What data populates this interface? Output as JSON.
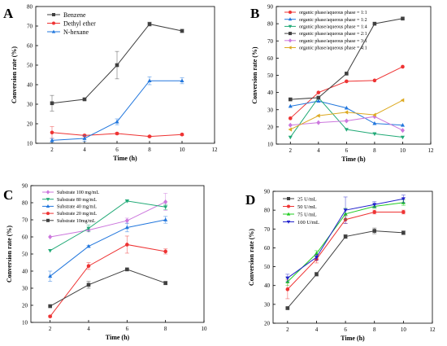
{
  "chart_data": [
    {
      "panel_label": "A",
      "type": "line",
      "xlabel": "Time (h)",
      "ylabel": "Conversion rate (%)",
      "xlim": [
        1,
        12
      ],
      "ylim": [
        10,
        80
      ],
      "xticks": [
        2,
        4,
        6,
        8,
        10,
        12
      ],
      "yticks": [
        10,
        20,
        30,
        40,
        50,
        60,
        70,
        80
      ],
      "legend_position": "top-left",
      "x": [
        2,
        4,
        6,
        8,
        10
      ],
      "series": [
        {
          "name": "Benzene",
          "color": "#404040",
          "marker": "square",
          "values": [
            30.5,
            32.5,
            50,
            71,
            67.5
          ],
          "errors": [
            4,
            0.5,
            7,
            1,
            0.8
          ]
        },
        {
          "name": "Dethyl ether",
          "color": "#ee3333",
          "marker": "circle",
          "values": [
            15.5,
            14,
            15,
            13.5,
            14.5
          ],
          "errors": [
            3,
            0.5,
            0.5,
            0.4,
            0.5
          ]
        },
        {
          "name": "N-hexane",
          "color": "#2277dd",
          "marker": "triangle",
          "values": [
            11.5,
            12.5,
            21,
            42,
            42
          ],
          "errors": [
            1,
            1.5,
            1.5,
            2,
            1.5
          ]
        }
      ]
    },
    {
      "panel_label": "B",
      "type": "line",
      "xlabel": "Time (h)",
      "ylabel": "Conversion rate (%)",
      "xlim": [
        1,
        12
      ],
      "ylim": [
        10,
        90
      ],
      "xticks": [
        2,
        4,
        6,
        8,
        10,
        12
      ],
      "yticks": [
        10,
        20,
        30,
        40,
        50,
        60,
        70,
        80,
        90
      ],
      "legend_position": "top-left",
      "x": [
        2,
        4,
        6,
        8,
        10
      ],
      "series": [
        {
          "name": "organic phase/aqueous phase = 1:1",
          "color": "#ee3333",
          "marker": "circle",
          "values": [
            25,
            40,
            46.5,
            47,
            55
          ],
          "errors": [
            0,
            0,
            0,
            0,
            0
          ]
        },
        {
          "name": "organic phase/aqueous phase = 1:2",
          "color": "#2277dd",
          "marker": "triangle",
          "values": [
            32,
            35,
            31,
            22,
            21
          ],
          "errors": [
            0,
            0,
            0,
            0,
            0
          ]
        },
        {
          "name": "organic phase/aqueous phase = 1:4",
          "color": "#22aa77",
          "marker": "triangle-down",
          "values": [
            14,
            37,
            18.5,
            16,
            14
          ],
          "errors": [
            0,
            0,
            0,
            0,
            0
          ]
        },
        {
          "name": "organic phase/aqueous phase = 2:1",
          "color": "#404040",
          "marker": "square",
          "values": [
            36,
            37,
            51,
            80,
            83
          ],
          "errors": [
            0,
            0,
            0,
            0,
            0
          ]
        },
        {
          "name": "organic phase/aqueous phase = 3:1",
          "color": "#cc77dd",
          "marker": "diamond",
          "values": [
            21,
            22.5,
            23.5,
            26,
            18
          ],
          "errors": [
            0,
            0,
            0,
            0,
            0
          ]
        },
        {
          "name": "organic phase/aqueous phase = 4:1",
          "color": "#ddaa22",
          "marker": "triangle-left",
          "values": [
            18.5,
            26.5,
            28.5,
            27,
            35.5
          ],
          "errors": [
            0,
            0,
            0,
            0,
            0
          ]
        }
      ]
    },
    {
      "panel_label": "C",
      "type": "line",
      "xlabel": "Time (h)",
      "ylabel": "Conversion rate (%)",
      "xlim": [
        1,
        10
      ],
      "ylim": [
        10,
        90
      ],
      "xticks": [
        2,
        4,
        6,
        8,
        10
      ],
      "yticks": [
        10,
        20,
        30,
        40,
        50,
        60,
        70,
        80,
        90
      ],
      "legend_position": "top-left",
      "x": [
        2,
        4,
        6,
        8
      ],
      "series": [
        {
          "name": "Substrate 100 mg/mL",
          "color": "#cc77dd",
          "marker": "diamond",
          "values": [
            60,
            64,
            69.5,
            80.5
          ],
          "errors": [
            0,
            0,
            1.5,
            5
          ]
        },
        {
          "name": "Substrate 80 mg/mL",
          "color": "#22aa77",
          "marker": "triangle-down",
          "values": [
            52,
            65,
            81,
            77.5
          ],
          "errors": [
            0,
            2,
            0.5,
            1.5
          ]
        },
        {
          "name": "Substrate 40 mg/mL",
          "color": "#2277dd",
          "marker": "triangle",
          "values": [
            37,
            54.5,
            65.5,
            70
          ],
          "errors": [
            3,
            0.5,
            2.5,
            2
          ]
        },
        {
          "name": "Substrate 20 mg/mL",
          "color": "#ee3333",
          "marker": "circle",
          "values": [
            13.5,
            43,
            55.5,
            51.5
          ],
          "errors": [
            0.5,
            2,
            5,
            1.5
          ]
        },
        {
          "name": "Substrate 10mg/mL",
          "color": "#404040",
          "marker": "square",
          "values": [
            19.5,
            32,
            41,
            33
          ],
          "errors": [
            0,
            2,
            0.5,
            1
          ]
        }
      ]
    },
    {
      "panel_label": "D",
      "type": "line",
      "xlabel": "Time (h)",
      "ylabel": "Conversion rate (%)",
      "xlim": [
        1,
        12
      ],
      "ylim": [
        20,
        90
      ],
      "xticks": [
        2,
        4,
        6,
        8,
        10,
        12
      ],
      "yticks": [
        20,
        30,
        40,
        50,
        60,
        70,
        80,
        90
      ],
      "legend_position": "top-left",
      "x": [
        2,
        4,
        6,
        8,
        10
      ],
      "series": [
        {
          "name": "25 U/mL",
          "color": "#404040",
          "marker": "square",
          "values": [
            28,
            46,
            66,
            69,
            68
          ],
          "errors": [
            0.5,
            1,
            1,
            1.5,
            1
          ]
        },
        {
          "name": "50 U/mL",
          "color": "#ee3333",
          "marker": "circle",
          "values": [
            38,
            54,
            75,
            79,
            79
          ],
          "errors": [
            5,
            2,
            2,
            1,
            1
          ]
        },
        {
          "name": "75 U/mL",
          "color": "#22cc22",
          "marker": "triangle",
          "values": [
            42,
            57,
            78,
            82,
            84
          ],
          "errors": [
            2,
            1.5,
            3,
            1,
            1.5
          ]
        },
        {
          "name": "100 U/mL",
          "color": "#2222cc",
          "marker": "triangle-down",
          "values": [
            44,
            55,
            80,
            83,
            86
          ],
          "errors": [
            2,
            1.5,
            7,
            1.5,
            2
          ]
        }
      ]
    }
  ]
}
